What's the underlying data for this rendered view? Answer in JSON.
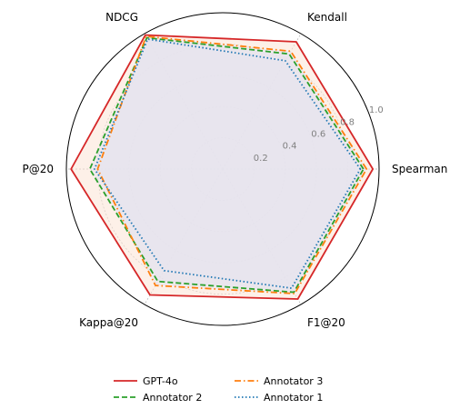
{
  "chart_data": {
    "type": "radar",
    "categories": [
      "Spearman",
      "Kendall",
      "NDCG",
      "P@20",
      "Kappa@20",
      "F1@20"
    ],
    "rlim": [
      0,
      1.0
    ],
    "rticks": [
      0.2,
      0.4,
      0.6,
      0.8,
      1.0
    ],
    "rtick_labels": [
      "0.2",
      "0.4",
      "0.6",
      "0.8",
      "1.0"
    ],
    "grid": true,
    "legend_position": "bottom-center",
    "series": [
      {
        "name": "GPT-4o",
        "values": [
          0.96,
          0.94,
          0.99,
          0.97,
          0.93,
          0.96
        ],
        "color": "#d62728",
        "dash": "solid",
        "fill": "#fbe3d6"
      },
      {
        "name": "Annotator 2",
        "values": [
          0.9,
          0.85,
          0.97,
          0.85,
          0.83,
          0.91
        ],
        "color": "#2ca02c",
        "dash": "dashed",
        "fill": "#e5e4ee"
      },
      {
        "name": "Annotator 3",
        "values": [
          0.92,
          0.87,
          0.98,
          0.8,
          0.86,
          0.92
        ],
        "color": "#ff7f0e",
        "dash": "dashdot",
        "fill": "#e5e4ee"
      },
      {
        "name": "Annotator 1",
        "values": [
          0.88,
          0.8,
          0.96,
          0.82,
          0.75,
          0.88
        ],
        "color": "#1f77b4",
        "dash": "dotted",
        "fill": "#e5e4ee"
      }
    ]
  }
}
